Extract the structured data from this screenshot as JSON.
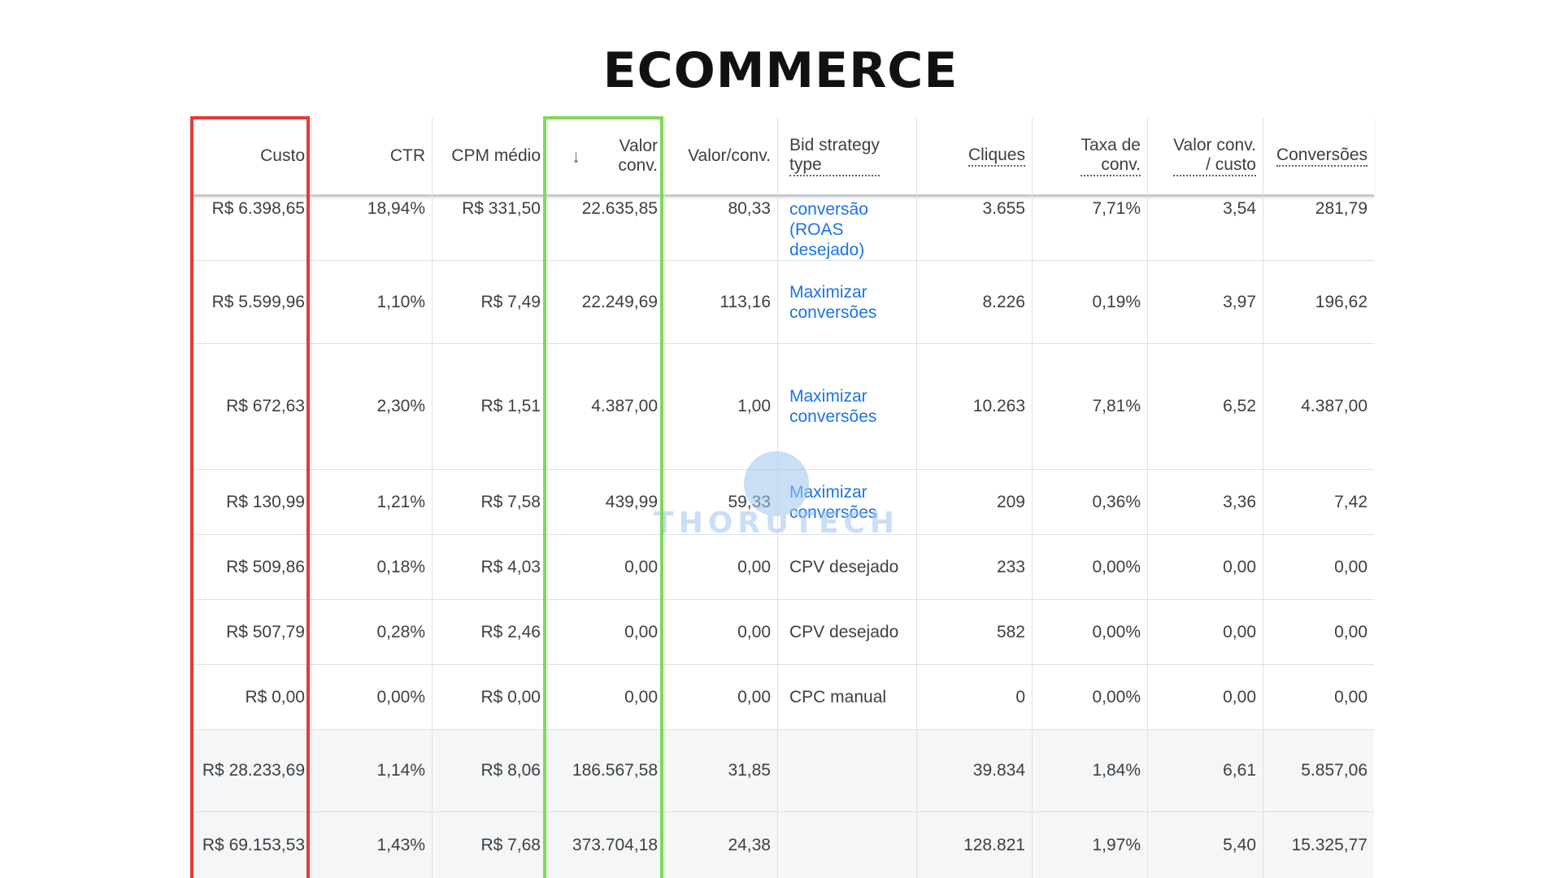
{
  "title": "ECOMMERCE",
  "headers": {
    "custo": "Custo",
    "ctr": "CTR",
    "cpm": "CPM médio",
    "valor_conv_line1": "Valor",
    "valor_conv_line2": "conv.",
    "sort_arrow": "↓",
    "valor_por_conv": "Valor/conv.",
    "bid_line1": "Bid strategy",
    "bid_line2": "type",
    "cliques": "Cliques",
    "taxa_line1": "Taxa de",
    "taxa_line2": "conv.",
    "valor_custo_line1": "Valor conv.",
    "valor_custo_line2": "/ custo",
    "conversoes": "Conversões"
  },
  "rows": [
    {
      "custo": "R$ 6.398,65",
      "ctr": "18,94%",
      "cpm": "R$ 331,50",
      "valor_conv": "22.635,85",
      "valor_por_conv": "80,33",
      "bid_line1": "conversão",
      "bid_line2": "(ROAS",
      "bid_line3": "desejado)",
      "cliques": "3.655",
      "taxa": "7,71%",
      "valor_custo": "3,54",
      "conversoes": "281,79"
    },
    {
      "custo": "R$ 5.599,96",
      "ctr": "1,10%",
      "cpm": "R$ 7,49",
      "valor_conv": "22.249,69",
      "valor_por_conv": "113,16",
      "bid_line1": "Maximizar",
      "bid_line2": "conversões",
      "cliques": "8.226",
      "taxa": "0,19%",
      "valor_custo": "3,97",
      "conversoes": "196,62"
    },
    {
      "custo": "R$ 672,63",
      "ctr": "2,30%",
      "cpm": "R$ 1,51",
      "valor_conv": "4.387,00",
      "valor_por_conv": "1,00",
      "bid_line1": "Maximizar",
      "bid_line2": "conversões",
      "cliques": "10.263",
      "taxa": "7,81%",
      "valor_custo": "6,52",
      "conversoes": "4.387,00"
    },
    {
      "custo": "R$ 130,99",
      "ctr": "1,21%",
      "cpm": "R$ 7,58",
      "valor_conv": "439,99",
      "valor_por_conv": "59,33",
      "bid_line1": "Maximizar",
      "bid_line2": "conversões",
      "cliques": "209",
      "taxa": "0,36%",
      "valor_custo": "3,36",
      "conversoes": "7,42"
    },
    {
      "custo": "R$ 509,86",
      "ctr": "0,18%",
      "cpm": "R$ 4,03",
      "valor_conv": "0,00",
      "valor_por_conv": "0,00",
      "bid": "CPV desejado",
      "cliques": "233",
      "taxa": "0,00%",
      "valor_custo": "0,00",
      "conversoes": "0,00"
    },
    {
      "custo": "R$ 507,79",
      "ctr": "0,28%",
      "cpm": "R$ 2,46",
      "valor_conv": "0,00",
      "valor_por_conv": "0,00",
      "bid": "CPV desejado",
      "cliques": "582",
      "taxa": "0,00%",
      "valor_custo": "0,00",
      "conversoes": "0,00"
    },
    {
      "custo": "R$ 0,00",
      "ctr": "0,00%",
      "cpm": "R$ 0,00",
      "valor_conv": "0,00",
      "valor_por_conv": "0,00",
      "bid": "CPC manual",
      "cliques": "0",
      "taxa": "0,00%",
      "valor_custo": "0,00",
      "conversoes": "0,00"
    }
  ],
  "totals": [
    {
      "custo": "R$ 28.233,69",
      "ctr": "1,14%",
      "cpm": "R$ 8,06",
      "valor_conv": "186.567,58",
      "valor_por_conv": "31,85",
      "cliques": "39.834",
      "taxa": "1,84%",
      "valor_custo": "6,61",
      "conversoes": "5.857,06"
    },
    {
      "custo": "R$ 69.153,53",
      "ctr": "1,43%",
      "cpm": "R$ 7,68",
      "valor_conv": "373.704,18",
      "valor_por_conv": "24,38",
      "cliques": "128.821",
      "taxa": "1,97%",
      "valor_custo": "5,40",
      "conversoes": "15.325,77"
    }
  ],
  "watermark": "THORUTECH",
  "colors": {
    "highlight_custo": "#e53935",
    "highlight_valor_conv": "#7ed957",
    "link": "#1a73e8"
  }
}
